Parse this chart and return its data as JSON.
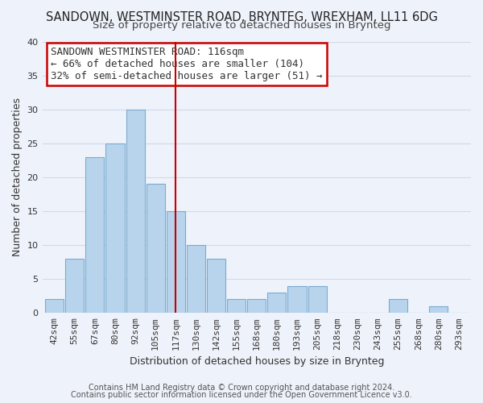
{
  "title": "SANDOWN, WESTMINSTER ROAD, BRYNTEG, WREXHAM, LL11 6DG",
  "subtitle": "Size of property relative to detached houses in Brynteg",
  "xlabel": "Distribution of detached houses by size in Brynteg",
  "ylabel": "Number of detached properties",
  "footer_line1": "Contains HM Land Registry data © Crown copyright and database right 2024.",
  "footer_line2": "Contains public sector information licensed under the Open Government Licence v3.0.",
  "bar_labels": [
    "42sqm",
    "55sqm",
    "67sqm",
    "80sqm",
    "92sqm",
    "105sqm",
    "117sqm",
    "130sqm",
    "142sqm",
    "155sqm",
    "168sqm",
    "180sqm",
    "193sqm",
    "205sqm",
    "218sqm",
    "230sqm",
    "243sqm",
    "255sqm",
    "268sqm",
    "280sqm",
    "293sqm"
  ],
  "bar_values": [
    2,
    8,
    23,
    25,
    30,
    19,
    15,
    10,
    8,
    2,
    2,
    3,
    4,
    4,
    0,
    0,
    0,
    2,
    0,
    1,
    0
  ],
  "bar_color": "#b8d4ed",
  "bar_edge_color": "#7aabcf",
  "grid_color": "#d0dae8",
  "background_color": "#eef2fa",
  "ylim": [
    0,
    40
  ],
  "yticks": [
    0,
    5,
    10,
    15,
    20,
    25,
    30,
    35,
    40
  ],
  "property_line_color": "#cc0000",
  "annotation_title": "SANDOWN WESTMINSTER ROAD: 116sqm",
  "annotation_line1": "← 66% of detached houses are smaller (104)",
  "annotation_line2": "32% of semi-detached houses are larger (51) →",
  "title_fontsize": 10.5,
  "subtitle_fontsize": 9.5,
  "label_fontsize": 9,
  "tick_fontsize": 8,
  "footer_fontsize": 7,
  "ann_fontsize": 9
}
